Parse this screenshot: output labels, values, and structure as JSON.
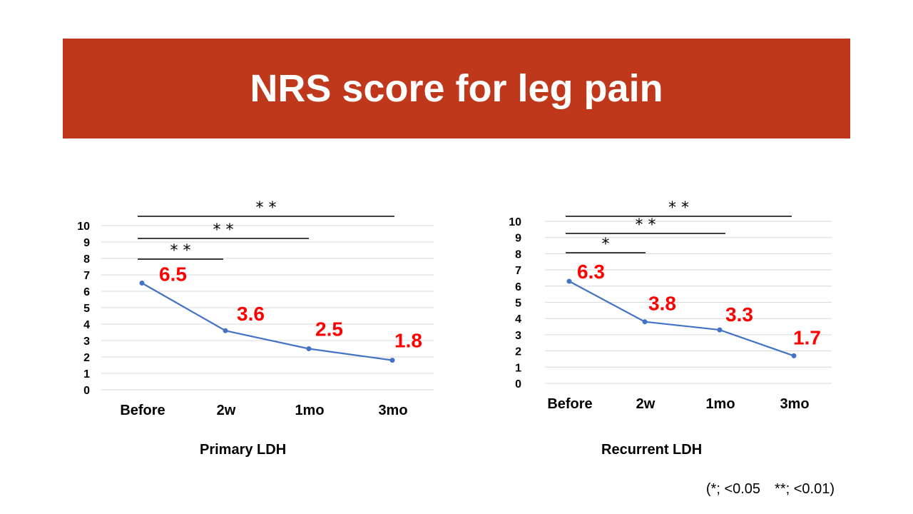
{
  "page": {
    "title": "NRS score for leg pain",
    "footnote": "(*; <0.05　**; <0.01)"
  },
  "colors": {
    "banner": "#c0381b",
    "line": "#4472c4",
    "data_label": "#ff0000"
  },
  "chart_data": [
    {
      "type": "line",
      "title": "Primary LDH",
      "categories": [
        "Before",
        "2w",
        "1mo",
        "3mo"
      ],
      "series": [
        {
          "values": [
            6.5,
            3.6,
            2.5,
            1.8
          ]
        }
      ],
      "data_labels": [
        "6.5",
        "3.6",
        "2.5",
        "1.8"
      ],
      "ylim": [
        0,
        10
      ],
      "yticks": [
        "0",
        "1",
        "2",
        "3",
        "4",
        "5",
        "6",
        "7",
        "8",
        "9",
        "10"
      ],
      "grid": true,
      "significance": [
        {
          "from": "Before",
          "to": "2w",
          "label": "* *"
        },
        {
          "from": "Before",
          "to": "1mo",
          "label": "* *"
        },
        {
          "from": "Before",
          "to": "3mo",
          "label": "* *"
        }
      ]
    },
    {
      "type": "line",
      "title": "Recurrent LDH",
      "categories": [
        "Before",
        "2w",
        "1mo",
        "3mo"
      ],
      "series": [
        {
          "values": [
            6.3,
            3.8,
            3.3,
            1.7
          ]
        }
      ],
      "data_labels": [
        "6.3",
        "3.8",
        "3.3",
        "1.7"
      ],
      "ylim": [
        0,
        10
      ],
      "yticks": [
        "0",
        "1",
        "2",
        "3",
        "4",
        "5",
        "6",
        "7",
        "8",
        "9",
        "10"
      ],
      "grid": true,
      "significance": [
        {
          "from": "Before",
          "to": "2w",
          "label": "*"
        },
        {
          "from": "Before",
          "to": "1mo",
          "label": "* *"
        },
        {
          "from": "Before",
          "to": "3mo",
          "label": "* *"
        }
      ]
    }
  ]
}
